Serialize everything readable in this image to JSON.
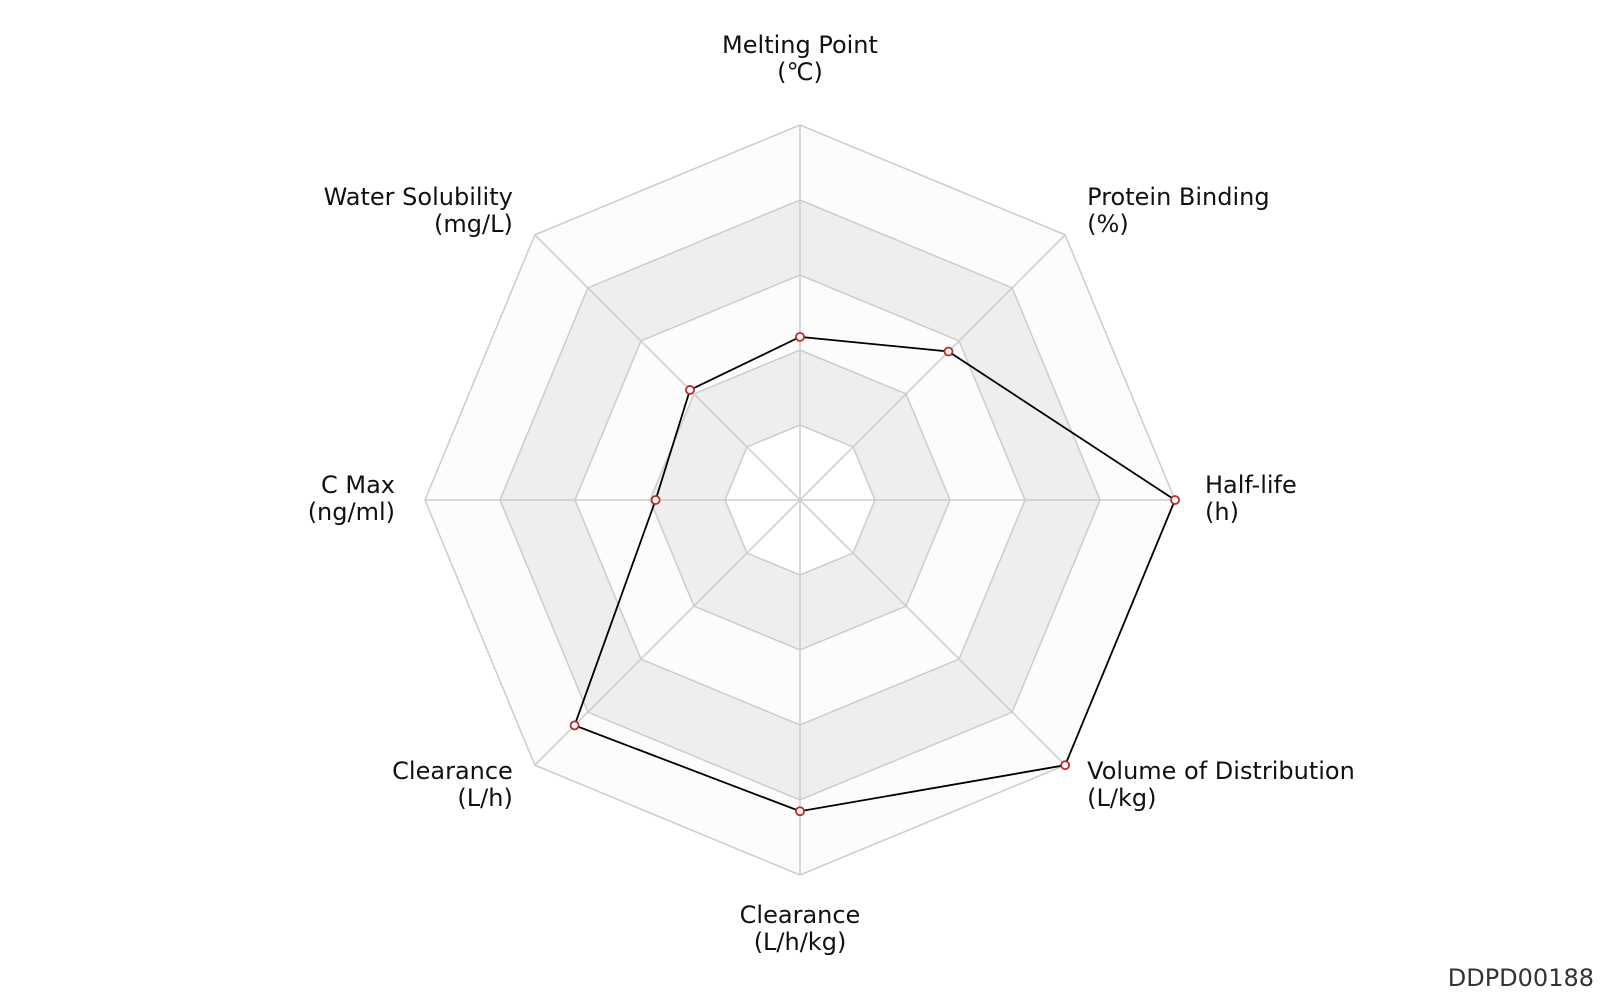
{
  "chart_data": {
    "type": "radar",
    "axes": [
      {
        "name": "Melting Point",
        "unit": "(℃)"
      },
      {
        "name": "Protein Binding",
        "unit": "(%)"
      },
      {
        "name": "Half-life",
        "unit": "(h)"
      },
      {
        "name": "Volume of Distribution",
        "unit": "(L/kg)"
      },
      {
        "name": "Clearance",
        "unit": "(L/h/kg)"
      },
      {
        "name": "Clearance",
        "unit": "(L/h)"
      },
      {
        "name": "C Max",
        "unit": "(ng/ml)"
      },
      {
        "name": "Water Solubility",
        "unit": "(mg/L)"
      }
    ],
    "levels": 5,
    "values": [
      0.435,
      0.56,
      1.0,
      1.0,
      0.83,
      0.85,
      0.385,
      0.415
    ],
    "range": [
      0,
      1
    ],
    "grid": true,
    "band_colors": [
      "#ffffff",
      "#eeeeee",
      "#fcfcfc",
      "#eeeeee",
      "#fcfcfc"
    ],
    "colors": {
      "line": "#000000",
      "marker_edge": "#c0282b",
      "marker_fill": "#ffffff",
      "grid": "#cccccc"
    }
  },
  "footer": {
    "id": "DDPD00188"
  }
}
